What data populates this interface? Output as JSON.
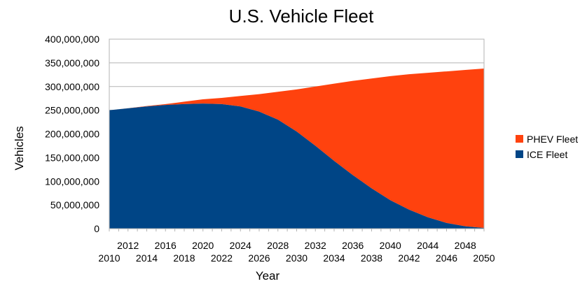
{
  "chart_data": {
    "type": "area",
    "stacked": true,
    "title": "U.S. Vehicle Fleet",
    "xlabel": "Year",
    "ylabel": "Vehicles",
    "xlim": [
      2010,
      2050
    ],
    "ylim": [
      0,
      400000000
    ],
    "y_ticks": [
      "0",
      "50,000,000",
      "100,000,000",
      "150,000,000",
      "200,000,000",
      "250,000,000",
      "300,000,000",
      "350,000,000",
      "400,000,000"
    ],
    "x_ticks_upper": [
      "2012",
      "2016",
      "2020",
      "2024",
      "2028",
      "2032",
      "2036",
      "2040",
      "2044",
      "2048"
    ],
    "x_ticks_lower": [
      "2010",
      "2014",
      "2018",
      "2022",
      "2026",
      "2030",
      "2034",
      "2038",
      "2042",
      "2046",
      "2050"
    ],
    "grid": "horizontal",
    "legend_position": "right",
    "x": [
      2010,
      2012,
      2014,
      2016,
      2018,
      2020,
      2022,
      2024,
      2026,
      2028,
      2030,
      2032,
      2034,
      2036,
      2038,
      2040,
      2042,
      2044,
      2046,
      2048,
      2050
    ],
    "series": [
      {
        "name": "ICE Fleet",
        "color": "#004586",
        "values": [
          250000000,
          254000000,
          258000000,
          261000000,
          263000000,
          264000000,
          263000000,
          258000000,
          247000000,
          230000000,
          205000000,
          175000000,
          143000000,
          113000000,
          85000000,
          60000000,
          40000000,
          24000000,
          12000000,
          5000000,
          1500000
        ]
      },
      {
        "name": "PHEV Fleet",
        "color": "#ff420e",
        "values": [
          0,
          300000,
          800000,
          2000000,
          5000000,
          9000000,
          13000000,
          22000000,
          37000000,
          59000000,
          89000000,
          125000000,
          163000000,
          199000000,
          232000000,
          262000000,
          286000000,
          305000000,
          320000000,
          330000000,
          336500000
        ]
      }
    ],
    "legend_order": [
      "PHEV Fleet",
      "ICE Fleet"
    ]
  }
}
